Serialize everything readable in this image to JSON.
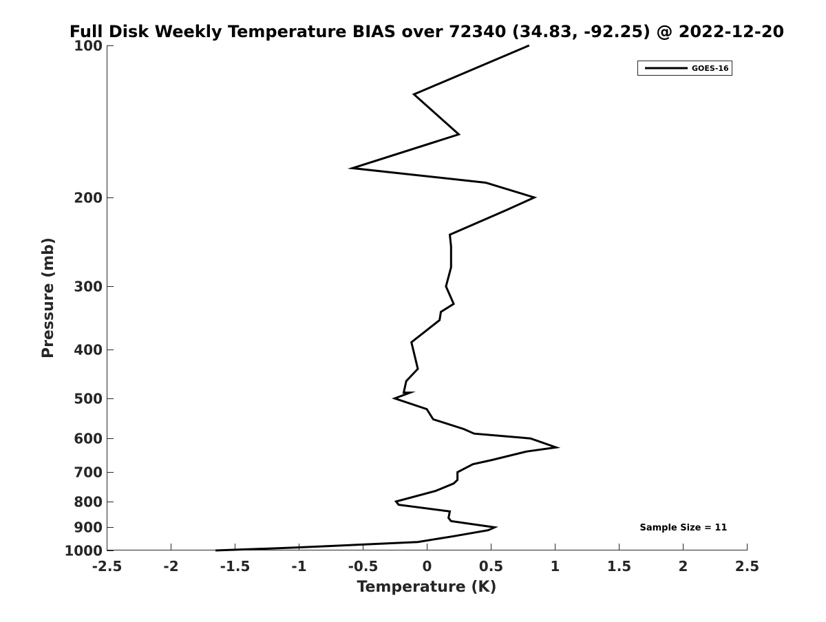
{
  "chart_data": {
    "type": "line",
    "title": "Full Disk Weekly Temperature BIAS over 72340 (34.83, -92.25) @ 2022-12-20",
    "xlabel": "Temperature (K)",
    "ylabel": "Pressure (mb)",
    "xlim": [
      -2.5,
      2.5
    ],
    "ylim": [
      100,
      1000
    ],
    "yscale": "log",
    "y_reversed": true,
    "xticks": [
      -2.5,
      -2,
      -1.5,
      -1,
      -0.5,
      0,
      0.5,
      1,
      1.5,
      2,
      2.5
    ],
    "xtick_labels": [
      "-2.5",
      "-2",
      "-1.5",
      "-1",
      "-0.5",
      "0",
      "0.5",
      "1",
      "1.5",
      "2",
      "2.5"
    ],
    "yticks": [
      100,
      200,
      300,
      400,
      500,
      600,
      700,
      800,
      900,
      1000
    ],
    "ytick_labels": [
      "100",
      "200",
      "300",
      "400",
      "500",
      "600",
      "700",
      "800",
      "900",
      "1000"
    ],
    "grid": false,
    "legend_position": "top-right",
    "annotation": "Sample Size = 11",
    "series": [
      {
        "name": "GOES-16",
        "color": "#000000",
        "points": [
          {
            "x": 0.8,
            "y": 100
          },
          {
            "x": -0.1,
            "y": 125
          },
          {
            "x": 0.25,
            "y": 150
          },
          {
            "x": -0.58,
            "y": 175
          },
          {
            "x": 0.46,
            "y": 187
          },
          {
            "x": 0.84,
            "y": 200
          },
          {
            "x": 0.62,
            "y": 212
          },
          {
            "x": 0.18,
            "y": 237
          },
          {
            "x": 0.19,
            "y": 250
          },
          {
            "x": 0.19,
            "y": 275
          },
          {
            "x": 0.15,
            "y": 300
          },
          {
            "x": 0.21,
            "y": 325
          },
          {
            "x": 0.11,
            "y": 337
          },
          {
            "x": 0.1,
            "y": 350
          },
          {
            "x": -0.12,
            "y": 387
          },
          {
            "x": -0.07,
            "y": 437
          },
          {
            "x": -0.16,
            "y": 462
          },
          {
            "x": -0.18,
            "y": 487
          },
          {
            "x": -0.13,
            "y": 487
          },
          {
            "x": -0.25,
            "y": 500
          },
          {
            "x": 0,
            "y": 525
          },
          {
            "x": 0.05,
            "y": 550
          },
          {
            "x": 0.29,
            "y": 575
          },
          {
            "x": 0.37,
            "y": 587
          },
          {
            "x": 0.81,
            "y": 600
          },
          {
            "x": 1.01,
            "y": 625
          },
          {
            "x": 0.78,
            "y": 637
          },
          {
            "x": 0.51,
            "y": 662
          },
          {
            "x": 0.36,
            "y": 675
          },
          {
            "x": 0.24,
            "y": 700
          },
          {
            "x": 0.24,
            "y": 725
          },
          {
            "x": 0.21,
            "y": 737
          },
          {
            "x": 0.07,
            "y": 762
          },
          {
            "x": -0.24,
            "y": 800
          },
          {
            "x": -0.22,
            "y": 812
          },
          {
            "x": 0.18,
            "y": 837
          },
          {
            "x": 0.17,
            "y": 862
          },
          {
            "x": 0.19,
            "y": 875
          },
          {
            "x": 0.53,
            "y": 900
          },
          {
            "x": 0.48,
            "y": 912
          },
          {
            "x": 0.21,
            "y": 937
          },
          {
            "x": -0.07,
            "y": 962
          },
          {
            "x": -1.02,
            "y": 987
          },
          {
            "x": -1.65,
            "y": 1000
          }
        ]
      }
    ]
  }
}
